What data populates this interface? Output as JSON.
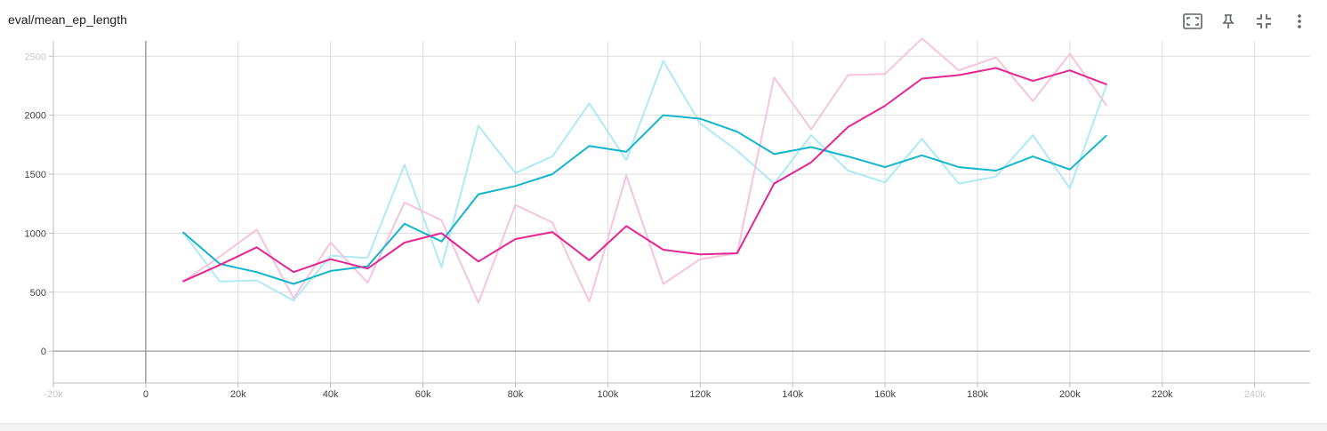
{
  "card": {
    "title": "eval/mean_ep_length"
  },
  "toolbar": [
    {
      "name": "fit-domain-button",
      "icon": "fit-screen-icon"
    },
    {
      "name": "pin-button",
      "icon": "pin-icon"
    },
    {
      "name": "collapse-button",
      "icon": "collapse-icon"
    },
    {
      "name": "more-options-button",
      "icon": "more-vert-icon"
    }
  ],
  "chart_data": {
    "type": "line",
    "title": "eval/mean_ep_length",
    "xlabel": "",
    "ylabel": "",
    "xlim": [
      -20000,
      252000
    ],
    "ylim": [
      -270,
      2630
    ],
    "x_ticks": [
      {
        "value": -20000,
        "label": "-20k",
        "faded": true
      },
      {
        "value": 0,
        "label": "0"
      },
      {
        "value": 20000,
        "label": "20k"
      },
      {
        "value": 40000,
        "label": "40k"
      },
      {
        "value": 60000,
        "label": "60k"
      },
      {
        "value": 80000,
        "label": "80k"
      },
      {
        "value": 100000,
        "label": "100k"
      },
      {
        "value": 120000,
        "label": "120k"
      },
      {
        "value": 140000,
        "label": "140k"
      },
      {
        "value": 160000,
        "label": "160k"
      },
      {
        "value": 180000,
        "label": "180k"
      },
      {
        "value": 200000,
        "label": "200k"
      },
      {
        "value": 220000,
        "label": "220k"
      },
      {
        "value": 240000,
        "label": "240k",
        "faded": true
      }
    ],
    "y_ticks": [
      {
        "value": 0,
        "label": "0"
      },
      {
        "value": 500,
        "label": "500"
      },
      {
        "value": 1000,
        "label": "1000"
      },
      {
        "value": 1500,
        "label": "1500"
      },
      {
        "value": 2000,
        "label": "2000"
      },
      {
        "value": 2500,
        "label": "2500",
        "faded": true
      }
    ],
    "grid": true,
    "series": [
      {
        "color": "#12b5cb",
        "raw_color": "#aeeaf5",
        "x": [
          8000,
          16000,
          24000,
          32000,
          40000,
          48000,
          56000,
          64000,
          72000,
          80000,
          88000,
          96000,
          104000,
          112000,
          120000,
          128000,
          136000,
          144000,
          152000,
          160000,
          168000,
          176000,
          184000,
          192000,
          200000,
          208000
        ],
        "raw": [
          1010,
          590,
          600,
          430,
          810,
          790,
          1580,
          710,
          1910,
          1510,
          1650,
          2100,
          1620,
          2460,
          1930,
          1700,
          1420,
          1830,
          1530,
          1430,
          1800,
          1420,
          1480,
          1830,
          1380,
          2260
        ],
        "smoothed": [
          1010,
          740,
          670,
          570,
          680,
          720,
          1080,
          930,
          1330,
          1400,
          1500,
          1740,
          1690,
          2000,
          1970,
          1860,
          1670,
          1730,
          1650,
          1560,
          1660,
          1560,
          1530,
          1650,
          1540,
          1830
        ]
      },
      {
        "color": "#e52592",
        "raw_color": "#f8c3dc",
        "x": [
          8000,
          16000,
          24000,
          32000,
          40000,
          48000,
          56000,
          64000,
          72000,
          80000,
          88000,
          96000,
          104000,
          112000,
          120000,
          128000,
          136000,
          144000,
          152000,
          160000,
          168000,
          176000,
          184000,
          192000,
          200000,
          208000
        ],
        "raw": [
          590,
          800,
          1030,
          450,
          920,
          580,
          1260,
          1110,
          410,
          1240,
          1090,
          420,
          1490,
          570,
          780,
          830,
          2320,
          1880,
          2340,
          2350,
          2650,
          2380,
          2490,
          2120,
          2520,
          2080
        ],
        "smoothed": [
          590,
          730,
          880,
          670,
          780,
          700,
          920,
          1000,
          760,
          950,
          1010,
          770,
          1060,
          860,
          820,
          830,
          1420,
          1600,
          1900,
          2080,
          2310,
          2340,
          2400,
          2290,
          2380,
          2260
        ]
      }
    ]
  }
}
